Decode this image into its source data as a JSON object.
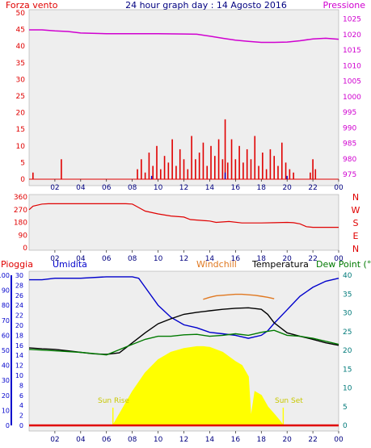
{
  "colors": {
    "red": "#e00000",
    "magenta": "#d000d0",
    "blue": "#0000cc",
    "navy": "#000080",
    "orange": "#e07820",
    "black": "#000000",
    "green": "#007a00",
    "teal": "#007a7a",
    "yellow": "#ffff00",
    "sunlabel": "#c8c800",
    "panel_bg": "#eeeeee"
  },
  "chart_data": [
    {
      "type": "bar",
      "title": "24 hour graph day : 14 Agosto 2016",
      "left_axis_label": "Forza vento",
      "right_axis_label": "Pressione",
      "x_ticks": [
        "02",
        "04",
        "06",
        "08",
        "10",
        "12",
        "14",
        "16",
        "18",
        "20",
        "22",
        "00"
      ],
      "y_left": {
        "ticks": [
          "0",
          "5",
          "10",
          "15",
          "20",
          "25",
          "30",
          "35",
          "40",
          "45",
          "50"
        ],
        "range": [
          0,
          50
        ]
      },
      "y_right": {
        "ticks": [
          "975",
          "980",
          "985",
          "990",
          "995",
          "1000",
          "1005",
          "1010",
          "1015",
          "1020",
          "1025"
        ],
        "range": [
          973.5,
          1028
        ]
      },
      "series": [
        {
          "color_key": "magenta",
          "axis": "right",
          "kind": "line",
          "x": [
            0,
            1,
            2,
            3,
            4,
            6,
            9,
            10,
            12,
            13,
            14,
            15,
            16,
            17,
            18,
            19,
            20,
            21,
            22,
            23,
            24
          ],
          "values": [
            1021.5,
            1021.5,
            1021.2,
            1021,
            1020.5,
            1020.3,
            1020.3,
            1020.3,
            1020.2,
            1020.1,
            1019.5,
            1018.8,
            1018.2,
            1017.8,
            1017.5,
            1017.5,
            1017.6,
            1018,
            1018.6,
            1018.8,
            1018.5
          ]
        }
      ],
      "gusts": {
        "color_key": "red",
        "x": [
          0.3,
          2.5,
          8.4,
          8.7,
          9.0,
          9.3,
          9.6,
          9.9,
          10.2,
          10.5,
          10.8,
          11.1,
          11.4,
          11.7,
          12.0,
          12.3,
          12.6,
          12.9,
          13.2,
          13.5,
          13.8,
          14.1,
          14.4,
          14.7,
          15.0,
          15.2,
          15.4,
          15.7,
          16.0,
          16.3,
          16.6,
          16.9,
          17.2,
          17.5,
          17.8,
          18.1,
          18.4,
          18.7,
          19.0,
          19.3,
          19.6,
          19.9,
          20.2,
          20.5,
          21.8,
          22.0,
          22.2
        ],
        "values": [
          2,
          6,
          3,
          6,
          2,
          8,
          4,
          10,
          3,
          7,
          5,
          12,
          4,
          9,
          6,
          3,
          13,
          6,
          8,
          11,
          4,
          10,
          7,
          12,
          6,
          18,
          5,
          12,
          6,
          10,
          5,
          9,
          6,
          13,
          4,
          8,
          3,
          9,
          7,
          4,
          11,
          5,
          3,
          2,
          2,
          6,
          3
        ]
      },
      "avg_wind": {
        "color_key": "blue",
        "x": [
          9.5,
          15.2,
          20.0
        ],
        "values": [
          1,
          2,
          1
        ]
      }
    },
    {
      "type": "line",
      "right_labels": [
        "N",
        "W",
        "S",
        "E",
        "N"
      ],
      "x_ticks": [
        "02",
        "04",
        "06",
        "08",
        "10",
        "12",
        "14",
        "16",
        "18",
        "20",
        "22",
        "00"
      ],
      "y": {
        "ticks": [
          "360",
          "270",
          "180",
          "90",
          "0"
        ],
        "range": [
          0,
          360
        ]
      },
      "series": [
        {
          "color_key": "red",
          "x": [
            0,
            0.3,
            1.0,
            1.5,
            7.5,
            8.0,
            8.5,
            9.0,
            10.0,
            11.0,
            12.0,
            12.5,
            14.0,
            14.5,
            15.5,
            16.5,
            18.0,
            19.0,
            20.0,
            20.5,
            21.0,
            21.5,
            22.0,
            23.0,
            24
          ],
          "values": [
            270,
            295,
            310,
            312,
            312,
            310,
            285,
            260,
            240,
            225,
            218,
            200,
            190,
            180,
            186,
            176,
            176,
            178,
            180,
            178,
            170,
            150,
            145,
            145,
            145
          ]
        }
      ]
    },
    {
      "type": "line",
      "labels": {
        "rain": "Pioggia",
        "humidity": "Umidita",
        "windchill": "Windchill",
        "temperature": "Temperatura",
        "dewpoint": "Dew Point (°C",
        "sunrise": "Sun Rise",
        "sunset": "Sun Set"
      },
      "x_ticks": [
        "02",
        "04",
        "06",
        "08",
        "10",
        "12",
        "14",
        "16",
        "18",
        "20",
        "22",
        "00"
      ],
      "y_humidity": {
        "ticks": [
          "0",
          "10",
          "20",
          "30",
          "40",
          "50",
          "60",
          "70",
          "80",
          "90",
          "100"
        ],
        "range": [
          0,
          100
        ]
      },
      "y_temp": {
        "ticks": [
          "0",
          "2",
          "4",
          "6",
          "8",
          "10",
          "12",
          "14",
          "16",
          "18",
          "20",
          "22",
          "24",
          "26",
          "28",
          "30"
        ],
        "range": [
          0,
          30
        ]
      },
      "y_right": {
        "ticks": [
          "0",
          "5",
          "10",
          "15",
          "20",
          "25",
          "30",
          "35",
          "40"
        ],
        "range": [
          0,
          40
        ]
      },
      "sun_markers_x": [
        6.5,
        19.7
      ],
      "series": [
        {
          "name": "Umidita",
          "color_key": "blue",
          "axis": "humidity",
          "x": [
            0,
            1,
            2,
            4,
            6,
            7,
            8,
            8.5,
            9,
            10,
            11,
            12,
            13,
            14,
            15,
            16,
            17,
            18,
            18.5,
            19,
            20,
            21,
            22,
            23,
            24
          ],
          "values": [
            97,
            97,
            98,
            98,
            99,
            99,
            99,
            98,
            92,
            80,
            72,
            67,
            65,
            62,
            61,
            60,
            58,
            60,
            63,
            68,
            77,
            86,
            92,
            96,
            98
          ]
        },
        {
          "name": "Temperatura",
          "color_key": "black",
          "axis": "temp",
          "x": [
            0,
            1,
            2,
            3,
            4,
            5,
            6,
            7,
            8,
            9,
            10,
            11,
            12,
            13,
            14,
            15,
            16,
            17,
            18,
            18.5,
            19,
            20,
            21,
            22,
            23,
            24
          ],
          "values": [
            15.5,
            15.3,
            15.2,
            14.9,
            14.6,
            14.3,
            14.2,
            14.5,
            16.5,
            18.5,
            20.3,
            21.3,
            22.2,
            22.6,
            22.9,
            23.2,
            23.4,
            23.5,
            23.2,
            22.2,
            20.5,
            18.5,
            17.8,
            17.2,
            16.5,
            16.0
          ]
        },
        {
          "name": "Dew Point (°C",
          "color_key": "green",
          "axis": "temp",
          "x": [
            0,
            2,
            4,
            6,
            8,
            9,
            10,
            11,
            12,
            13,
            14,
            15,
            16,
            17,
            18,
            19,
            20,
            21,
            22,
            23,
            24
          ],
          "values": [
            15.2,
            14.9,
            14.6,
            14.1,
            16.2,
            17.2,
            17.8,
            17.8,
            18.1,
            18.2,
            17.8,
            18.0,
            18.3,
            18.0,
            18.6,
            19.0,
            18.0,
            17.8,
            17.4,
            16.8,
            16.2
          ]
        },
        {
          "name": "Windchill",
          "color_key": "orange",
          "axis": "temp",
          "x": [
            13.5,
            14,
            14.5,
            15,
            15.5,
            16,
            16.5,
            17,
            17.5,
            18,
            18.5,
            19
          ],
          "values": [
            25.2,
            25.6,
            25.9,
            26.0,
            26.1,
            26.2,
            26.2,
            26.1,
            26.0,
            25.8,
            25.6,
            25.3
          ]
        },
        {
          "name": "Sun",
          "color_key": "yellow",
          "axis": "right",
          "kind": "area",
          "x": [
            6.5,
            7,
            8,
            9,
            10,
            11,
            12,
            13,
            13.5,
            14,
            15,
            16,
            16.5,
            17,
            17.2,
            17.5,
            18,
            18.5,
            19,
            19.5,
            19.7
          ],
          "values": [
            0,
            3,
            9,
            14,
            17.5,
            19.5,
            20.5,
            21,
            21,
            20.8,
            19.5,
            17,
            16,
            13,
            2,
            9,
            8,
            5,
            3,
            1,
            0
          ]
        },
        {
          "name": "Pioggia",
          "color_key": "red",
          "axis": "humidity",
          "x": [
            0,
            24
          ],
          "values": [
            0,
            0
          ]
        }
      ]
    }
  ]
}
